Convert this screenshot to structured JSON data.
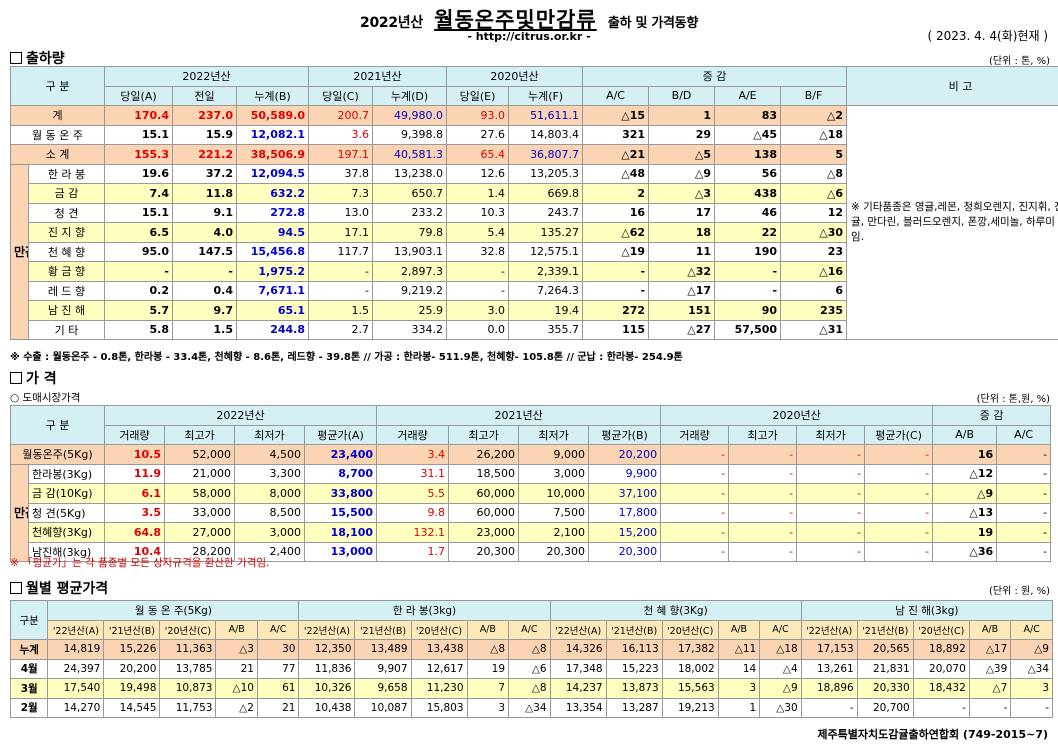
{
  "header": {
    "year": "2022년산",
    "main": "월동온주및만감류",
    "sub": "출하 및 가격동향",
    "url": "- http://citrus.or.kr -",
    "as_of": "( 2023.  4.  4(화)현재 )"
  },
  "s1": {
    "title": "출하량",
    "unit": "(단위 : 톤, %)",
    "h_group": "구    분",
    "h_y22": "2022년산",
    "h_y21": "2021년산",
    "h_y20": "2020년산",
    "h_inc": "증    감",
    "h_note": "비 고",
    "cols": [
      "당일(A)",
      "전일",
      "누계(B)",
      "당일(C)",
      "누계(D)",
      "당일(E)",
      "누계(F)",
      "A/C",
      "B/D",
      "A/E",
      "B/F"
    ],
    "rows": [
      {
        "label": "계",
        "v": [
          "170.4",
          "237.0",
          "50,589.0",
          "200.7",
          "49,980.0",
          "93.0",
          "51,611.1",
          "△15",
          "1",
          "83",
          "△2"
        ]
      },
      {
        "label": "월 동 온 주",
        "v": [
          "15.1",
          "15.9",
          "12,082.1",
          "3.6",
          "9,398.8",
          "27.6",
          "14,803.4",
          "321",
          "29",
          "△45",
          "△18"
        ]
      },
      {
        "label": "소    계",
        "v": [
          "155.3",
          "221.2",
          "38,506.9",
          "197.1",
          "40,581.3",
          "65.4",
          "36,807.7",
          "△21",
          "△5",
          "138",
          "5"
        ]
      },
      {
        "label": "한 라 봉",
        "v": [
          "19.6",
          "37.2",
          "12,094.5",
          "37.8",
          "13,238.0",
          "12.6",
          "13,205.3",
          "△48",
          "△9",
          "56",
          "△8"
        ]
      },
      {
        "label": "금    감",
        "v": [
          "7.4",
          "11.8",
          "632.2",
          "7.3",
          "650.7",
          "1.4",
          "669.8",
          "2",
          "△3",
          "438",
          "△6"
        ]
      },
      {
        "label": "청    견",
        "v": [
          "15.1",
          "9.1",
          "272.8",
          "13.0",
          "233.2",
          "10.3",
          "243.7",
          "16",
          "17",
          "46",
          "12"
        ]
      },
      {
        "label": "진 지 향",
        "v": [
          "6.5",
          "4.0",
          "94.5",
          "17.1",
          "79.8",
          "5.4",
          "135.27",
          "△62",
          "18",
          "22",
          "△30"
        ]
      },
      {
        "label": "천 혜 향",
        "v": [
          "95.0",
          "147.5",
          "15,456.8",
          "117.7",
          "13,903.1",
          "32.8",
          "12,575.1",
          "△19",
          "11",
          "190",
          "23"
        ]
      },
      {
        "label": "황 금 향",
        "v": [
          "-",
          "-",
          "1,975.2",
          "-",
          "2,897.3",
          "-",
          "2,339.1",
          "-",
          "△32",
          "-",
          "△16"
        ]
      },
      {
        "label": "레 드 향",
        "v": [
          "0.2",
          "0.4",
          "7,671.1",
          "-",
          "9,219.2",
          "-",
          "7,264.3",
          "-",
          "△17",
          "-",
          "6"
        ]
      },
      {
        "label": "남 진 해",
        "v": [
          "5.7",
          "9.7",
          "65.1",
          "1.5",
          "25.9",
          "3.0",
          "19.4",
          "272",
          "151",
          "90",
          "235"
        ]
      },
      {
        "label": "기    타",
        "v": [
          "5.8",
          "1.5",
          "244.8",
          "2.7",
          "334.2",
          "0.0",
          "355.7",
          "115",
          "△27",
          "57,500",
          "△31"
        ]
      }
    ],
    "mangam": "만감류",
    "remark": "※ 기타품종은 영귤,레몬, 청희오렌지, 진지휘, 진귤, 만다린, 블러드오렌지, 폰깡,세미놀, 하루미 등 임.",
    "note": "※ 수출 : 월동온주 - 0.8톤, 한라봉 - 33.4톤, 천혜향 - 8.6톤, 레드향 - 39.8톤  //  가공  :  한라봉- 511.9톤, 천혜향- 105.8톤  //  군납 : 한라봉- 254.9톤"
  },
  "s2": {
    "title": "가    격",
    "unit": "(단위 : 톤,원, %)",
    "subtitle": "○ 도매시장가격",
    "h_group": "구    분",
    "h_y22": "2022년산",
    "h_y21": "2021년산",
    "h_y20": "2020년산",
    "h_inc": "증    감",
    "cols": [
      "거래량",
      "최고가",
      "최저가",
      "평균가(A)",
      "거래량",
      "최고가",
      "최저가",
      "평균가(B)",
      "거래량",
      "최고가",
      "최저가",
      "평균가(C)",
      "A/B",
      "A/C"
    ],
    "rows": [
      {
        "label": "월동온주(5Kg)",
        "v": [
          "10.5",
          "52,000",
          "4,500",
          "23,400",
          "3.4",
          "26,200",
          "9,000",
          "20,200",
          "-",
          "-",
          "-",
          "-",
          "16",
          "-"
        ]
      },
      {
        "label": "한라봉(3Kg)",
        "v": [
          "11.9",
          "21,000",
          "3,300",
          "8,700",
          "31.1",
          "18,500",
          "3,000",
          "9,900",
          "-",
          "-",
          "-",
          "-",
          "△12",
          "-"
        ]
      },
      {
        "label": "금 감(10Kg)",
        "v": [
          "6.1",
          "58,000",
          "8,000",
          "33,800",
          "5.5",
          "60,000",
          "10,000",
          "37,100",
          "-",
          "-",
          "-",
          "-",
          "△9",
          "-"
        ]
      },
      {
        "label": "청  견(5Kg)",
        "v": [
          "3.5",
          "33,000",
          "8,500",
          "15,500",
          "9.8",
          "60,000",
          "7,500",
          "17,800",
          "-",
          "-",
          "-",
          "-",
          "△13",
          "-"
        ]
      },
      {
        "label": "천혜향(3Kg)",
        "v": [
          "64.8",
          "27,000",
          "3,000",
          "18,100",
          "132.1",
          "23,000",
          "2,100",
          "15,200",
          "-",
          "-",
          "-",
          "-",
          "19",
          "-"
        ]
      },
      {
        "label": "남진해(3kg)",
        "v": [
          "10.4",
          "28,200",
          "2,400",
          "13,000",
          "1.7",
          "20,300",
          "20,300",
          "20,300",
          "-",
          "-",
          "-",
          "-",
          "△36",
          "-"
        ]
      }
    ],
    "mangam": "만감류",
    "note": "※  「평균가」는 각 품종별 모든 상자규격을 환산한 가격임."
  },
  "s3": {
    "title": "월별 평균가격",
    "unit": "(단위 : 원, %)",
    "h_group": "구분",
    "groups": [
      "월 동 온 주(5Kg)",
      "한    라    봉(3kg)",
      "천  혜  향(3Kg)",
      "남  진  해(3kg)"
    ],
    "cols": [
      "'22년산(A)",
      "'21년산(B)",
      "'20년산(C)",
      "A/B",
      "A/C",
      "'22년산(A)",
      "'21년산(B)",
      "'20년산(C)",
      "A/B",
      "A/C",
      "'22년산(A)",
      "'21년산(B)",
      "'20년산(C)",
      "A/B",
      "A/C",
      "'22년산(A)",
      "'21년산(B)",
      "'20년산(C)",
      "A/B",
      "A/C"
    ],
    "rows": [
      {
        "label": "누계",
        "v": [
          "14,819",
          "15,226",
          "11,363",
          "△3",
          "30",
          "12,350",
          "13,489",
          "13,438",
          "△8",
          "△8",
          "14,326",
          "16,113",
          "17,382",
          "△11",
          "△18",
          "17,153",
          "20,565",
          "18,892",
          "△17",
          "△9"
        ]
      },
      {
        "label": "4월",
        "v": [
          "24,397",
          "20,200",
          "13,785",
          "21",
          "77",
          "11,836",
          "9,907",
          "12,617",
          "19",
          "△6",
          "17,348",
          "15,223",
          "18,002",
          "14",
          "△4",
          "13,261",
          "21,831",
          "20,070",
          "△39",
          "△34"
        ]
      },
      {
        "label": "3월",
        "v": [
          "17,540",
          "19,498",
          "10,873",
          "△10",
          "61",
          "10,326",
          "9,658",
          "11,230",
          "7",
          "△8",
          "14,237",
          "13,873",
          "15,563",
          "3",
          "△9",
          "18,896",
          "20,330",
          "18,432",
          "△7",
          "3"
        ]
      },
      {
        "label": "2월",
        "v": [
          "14,270",
          "14,545",
          "11,753",
          "△2",
          "21",
          "10,438",
          "10,087",
          "15,803",
          "3",
          "△34",
          "13,354",
          "13,287",
          "19,213",
          "1",
          "△30",
          "-",
          "20,700",
          "-",
          "-",
          "-"
        ]
      }
    ]
  },
  "footer": "제주특별자치도감귤출하연합회 (749-2015~7)"
}
